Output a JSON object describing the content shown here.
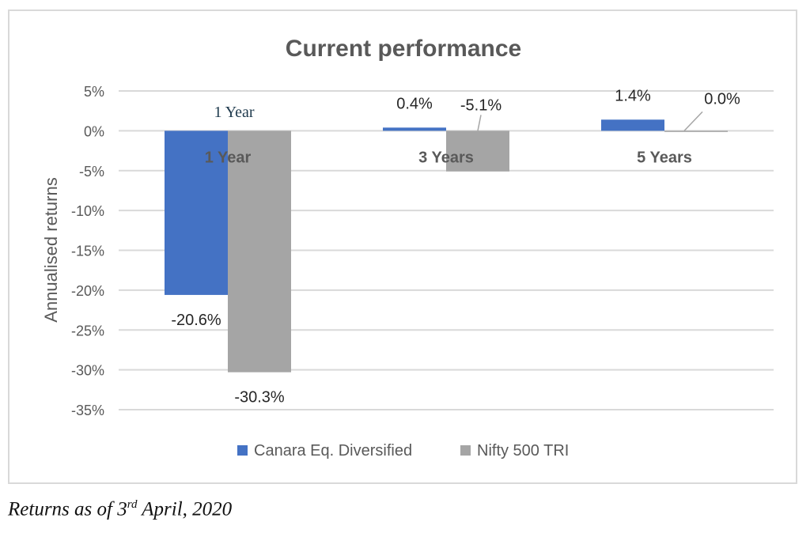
{
  "colors": {
    "series_1": "#4472c4",
    "series_2": "#a5a5a5",
    "grid": "#d9d9d9",
    "text": "#595959",
    "annotation": "#1f3a4d"
  },
  "chart_data": {
    "type": "bar",
    "title": "Current performance",
    "xlabel": "",
    "ylabel": "Annualised returns",
    "ylim": [
      -35,
      5
    ],
    "yticks": [
      5,
      0,
      -5,
      -10,
      -15,
      -20,
      -25,
      -30,
      -35
    ],
    "ytick_labels": [
      "5%",
      "0%",
      "-5%",
      "-10%",
      "-15%",
      "-20%",
      "-25%",
      "-30%",
      "-35%"
    ],
    "categories": [
      "1 Year",
      "3 Years",
      "5 Years"
    ],
    "series": [
      {
        "name": "Canara Eq. Diversified",
        "values": [
          -20.6,
          0.4,
          1.4
        ],
        "labels": [
          "-20.6%",
          "0.4%",
          "1.4%"
        ]
      },
      {
        "name": "Nifty 500 TRI",
        "values": [
          -30.3,
          -5.1,
          0.0
        ],
        "labels": [
          "-30.3%",
          "-5.1%",
          "0.0%"
        ]
      }
    ],
    "annotation": "1 Year",
    "grid": true,
    "legend": "bottom"
  },
  "caption": {
    "prefix": "Returns as of 3",
    "superscript": "rd",
    "suffix": " April, 2020"
  }
}
